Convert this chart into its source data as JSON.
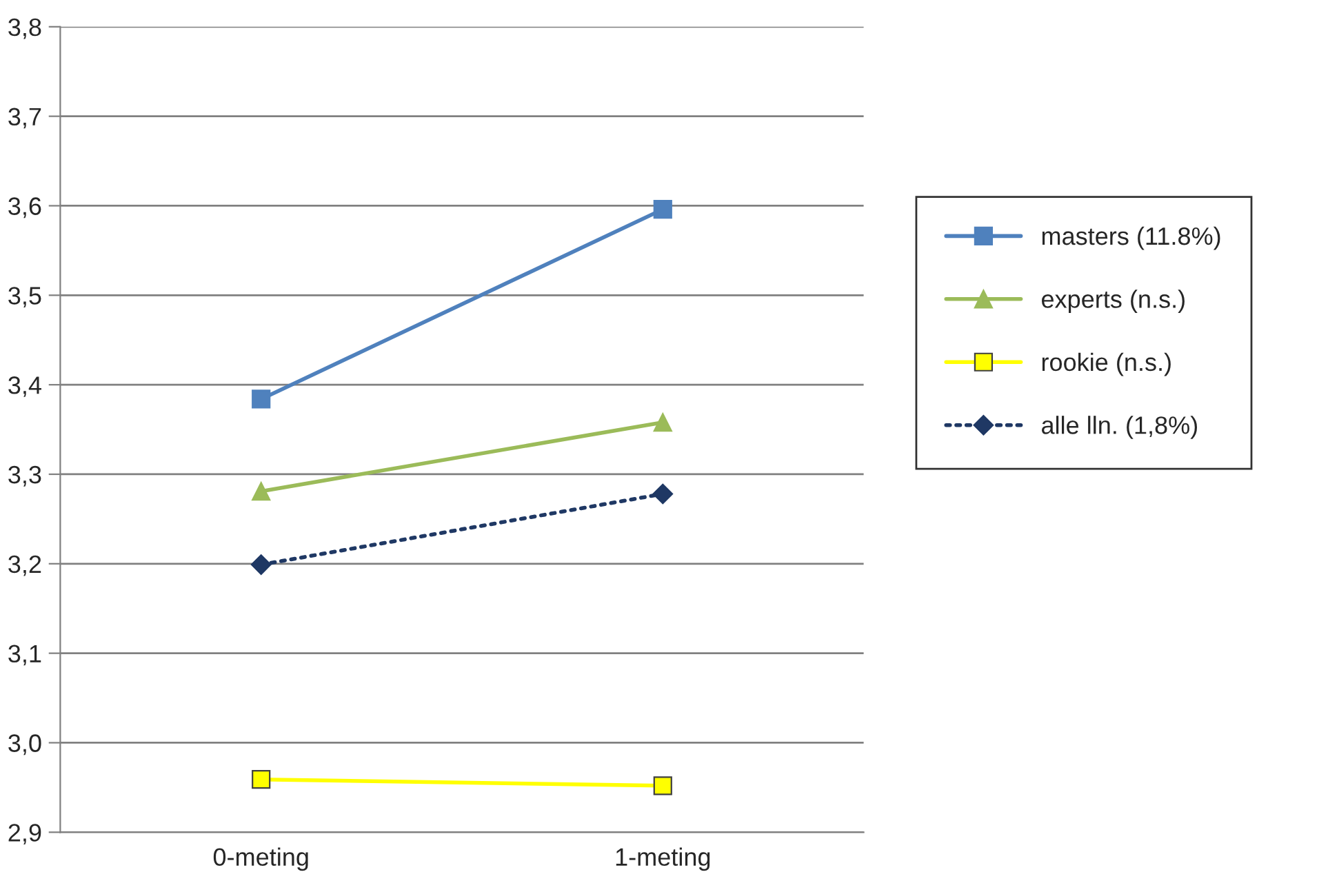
{
  "chart_data": {
    "type": "line",
    "categories": [
      "0-meting",
      "1-meting"
    ],
    "series": [
      {
        "name": "masters (11.8%)",
        "color": "#4f81bd",
        "values": [
          3.384,
          3.596
        ],
        "marker": "square",
        "line_style": "solid"
      },
      {
        "name": "experts (n.s.)",
        "color": "#9bbb59",
        "values": [
          3.281,
          3.358
        ],
        "marker": "triangle",
        "line_style": "solid"
      },
      {
        "name": "rookie (n.s.)",
        "color": "#ffff00",
        "values": [
          2.959,
          2.952
        ],
        "marker": "square",
        "line_style": "solid"
      },
      {
        "name": "alle lln. (1,8%)",
        "color": "#1f3864",
        "values": [
          3.199,
          3.278
        ],
        "marker": "diamond",
        "line_style": "dotted"
      }
    ],
    "ylim": [
      2.9,
      3.8
    ],
    "yticks": [
      {
        "value": 2.9,
        "label": "2,9"
      },
      {
        "value": 3.0,
        "label": "3,0"
      },
      {
        "value": 3.1,
        "label": "3,1"
      },
      {
        "value": 3.2,
        "label": "3,2"
      },
      {
        "value": 3.3,
        "label": "3,3"
      },
      {
        "value": 3.4,
        "label": "3,4"
      },
      {
        "value": 3.5,
        "label": "3,5"
      },
      {
        "value": 3.6,
        "label": "3,6"
      },
      {
        "value": 3.7,
        "label": "3,7"
      },
      {
        "value": 3.8,
        "label": "3,8"
      }
    ],
    "grid": "y",
    "legend": "right"
  }
}
